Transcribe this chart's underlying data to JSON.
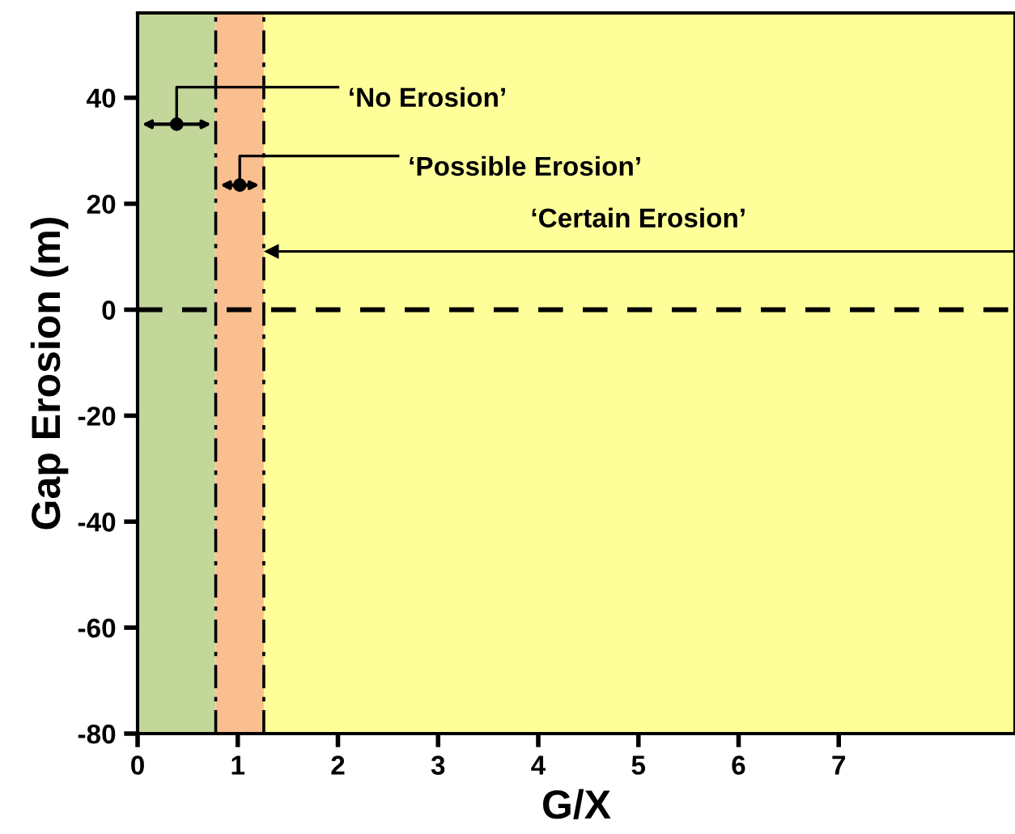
{
  "chart_data": {
    "type": "line",
    "xlabel": "G/X",
    "ylabel": "Gap Erosion (m)",
    "xlim": [
      0,
      8.76
    ],
    "ylim": [
      -80,
      56
    ],
    "xticks": [
      0,
      1,
      2,
      3,
      4,
      5,
      6,
      7
    ],
    "yticks": [
      -80,
      -60,
      -40,
      -20,
      0,
      20,
      40
    ],
    "grid": false,
    "legend": false,
    "bands": [
      {
        "axis": "x",
        "from": 0,
        "to": 0.78,
        "label": "‘No Erosion’",
        "color": "#c4d79b"
      },
      {
        "axis": "x",
        "from": 0.78,
        "to": 1.26,
        "label": "‘Possible Erosion’",
        "color": "#fabf8f"
      },
      {
        "axis": "x",
        "from": 1.26,
        "to": 8.76,
        "label": "‘Certain Erosion’",
        "color": "#ffff99"
      }
    ],
    "ref_lines": [
      {
        "axis": "y",
        "value": 0,
        "line_style": "dashed",
        "color": "#000000"
      },
      {
        "axis": "x",
        "value": 0.78,
        "line_style": "dashdot",
        "color": "#000000"
      },
      {
        "axis": "x",
        "value": 1.26,
        "line_style": "dashdot",
        "color": "#000000"
      }
    ]
  }
}
